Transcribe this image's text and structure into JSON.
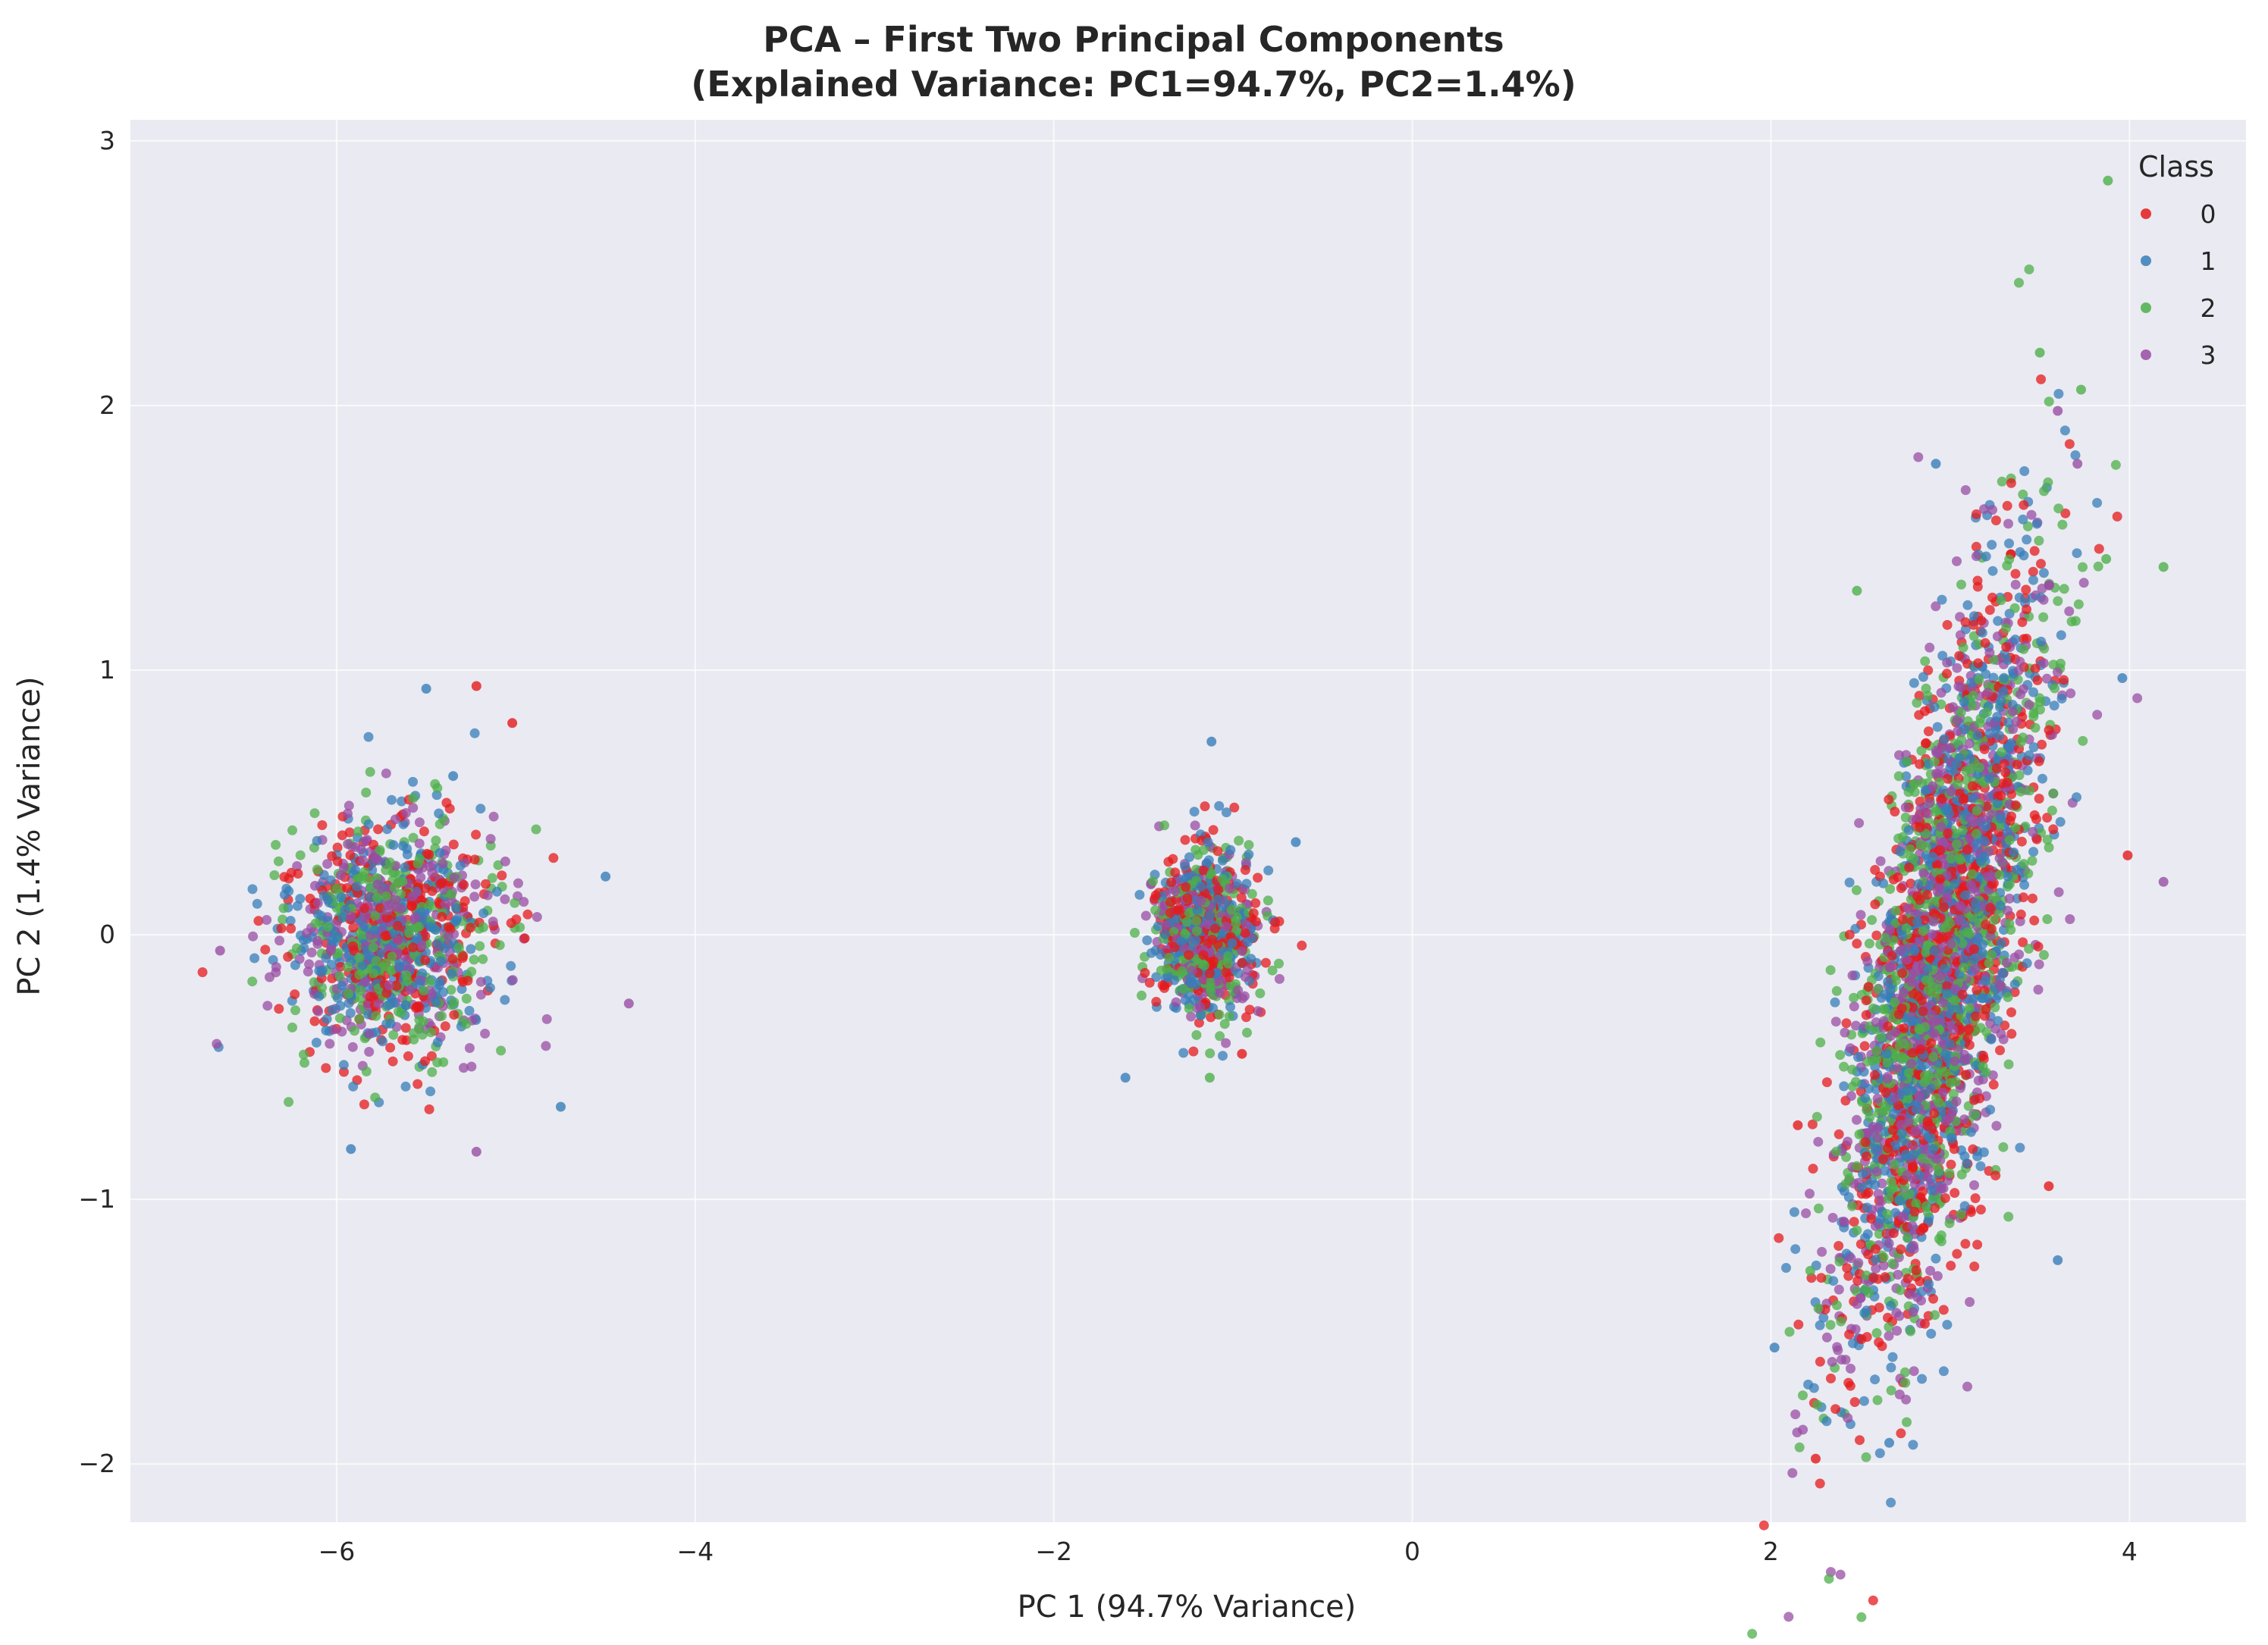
{
  "chart_data": {
    "type": "scatter",
    "title": "PCA – First Two Principal Components",
    "subtitle": "(Explained Variance: PC1=94.7%, PC2=1.4%)",
    "xlabel": "PC 1 (94.7% Variance)",
    "ylabel": "PC 2 (1.4% Variance)",
    "xlim": [
      -7.15,
      4.65
    ],
    "ylim": [
      -2.22,
      3.08
    ],
    "xticks": [
      -6,
      -4,
      -2,
      0,
      2,
      4
    ],
    "yticks": [
      -2,
      -1,
      0,
      1,
      2,
      3
    ],
    "grid": true,
    "legend": {
      "title": "Class",
      "placement": "top-right"
    },
    "series": [
      {
        "name": "0",
        "color": "#e41a1c"
      },
      {
        "name": "1",
        "color": "#377eb8"
      },
      {
        "name": "2",
        "color": "#4daf4a"
      },
      {
        "name": "3",
        "color": "#984ea3"
      }
    ],
    "clusters": [
      {
        "center": [
          -5.7,
          0.0
        ],
        "spread": [
          0.3,
          0.22
        ],
        "slope": 0.0,
        "count": 1200
      },
      {
        "center": [
          -1.15,
          0.0
        ],
        "spread": [
          0.14,
          0.15
        ],
        "slope": 0.0,
        "count": 900
      },
      {
        "center": [
          2.95,
          -0.1
        ],
        "spread": [
          0.28,
          0.52
        ],
        "slope": 1.75,
        "count": 3200
      }
    ],
    "outliers": [
      {
        "series": "2",
        "x": 3.88,
        "y": 2.85
      },
      {
        "series": "2",
        "x": 3.5,
        "y": 2.2
      },
      {
        "series": "2",
        "x": 3.73,
        "y": 2.06
      },
      {
        "series": "3",
        "x": 3.6,
        "y": 1.98
      },
      {
        "series": "1",
        "x": 2.92,
        "y": 1.78
      },
      {
        "series": "3",
        "x": 3.71,
        "y": 1.78
      },
      {
        "series": "2",
        "x": 3.87,
        "y": 1.42
      },
      {
        "series": "2",
        "x": 4.19,
        "y": 1.39
      },
      {
        "series": "2",
        "x": 2.48,
        "y": 1.3
      },
      {
        "series": "3",
        "x": 4.19,
        "y": 0.2
      },
      {
        "series": "0",
        "x": 3.99,
        "y": 0.3
      },
      {
        "series": "1",
        "x": 3.96,
        "y": 0.97
      },
      {
        "series": "0",
        "x": 2.25,
        "y": -1.98
      },
      {
        "series": "1",
        "x": 2.66,
        "y": -1.92
      },
      {
        "series": "1",
        "x": 2.02,
        "y": -1.56
      },
      {
        "series": "2",
        "x": 2.22,
        "y": -1.27
      },
      {
        "series": "0",
        "x": 3.55,
        "y": -0.95
      },
      {
        "series": "1",
        "x": 3.6,
        "y": -1.23
      },
      {
        "series": "0",
        "x": 2.15,
        "y": -0.72
      },
      {
        "series": "0",
        "x": -5.22,
        "y": 0.94
      },
      {
        "series": "1",
        "x": -5.5,
        "y": 0.93
      },
      {
        "series": "0",
        "x": -5.02,
        "y": 0.8
      },
      {
        "series": "1",
        "x": -5.35,
        "y": 0.6
      },
      {
        "series": "3",
        "x": -4.37,
        "y": -0.26
      },
      {
        "series": "1",
        "x": -4.75,
        "y": -0.65
      },
      {
        "series": "1",
        "x": -4.5,
        "y": 0.22
      },
      {
        "series": "3",
        "x": -6.65,
        "y": -0.06
      },
      {
        "series": "3",
        "x": -5.22,
        "y": -0.82
      },
      {
        "series": "1",
        "x": -5.92,
        "y": -0.81
      },
      {
        "series": "1",
        "x": -1.12,
        "y": 0.73
      },
      {
        "series": "1",
        "x": -0.65,
        "y": 0.35
      },
      {
        "series": "1",
        "x": -1.6,
        "y": -0.54
      },
      {
        "series": "2",
        "x": -1.13,
        "y": -0.54
      },
      {
        "series": "0",
        "x": -0.95,
        "y": -0.45
      }
    ]
  }
}
